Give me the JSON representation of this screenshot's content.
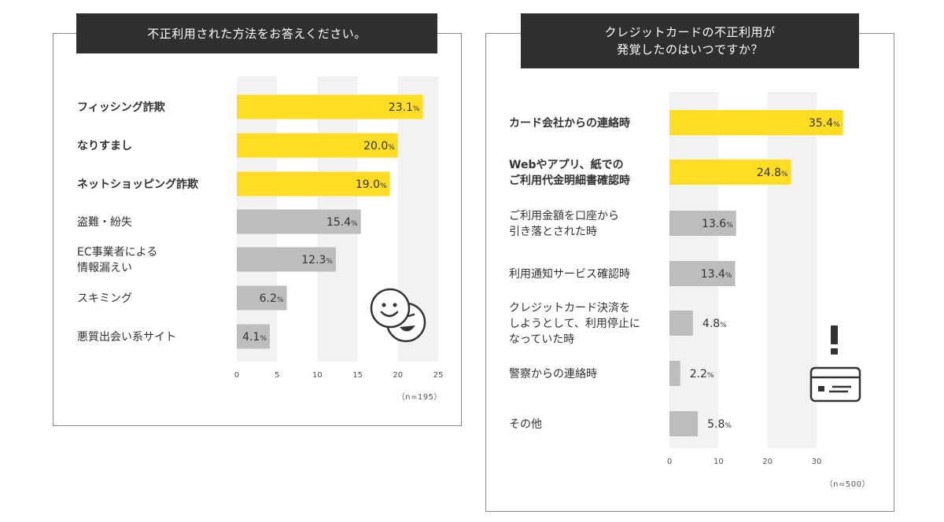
{
  "colors": {
    "highlight": "#ffdd22",
    "gray": "#bdbdbd",
    "band": "#f2f2f2",
    "title_bg": "#2f2f2f",
    "outline": "#333333"
  },
  "icons": {
    "left": "smiley-faces-icon",
    "right": "credit-card-alert-icon"
  },
  "chart_data": [
    {
      "type": "bar",
      "orientation": "horizontal",
      "title": "不正利用された方法をお答えください。",
      "categories": [
        "フィッシング詐欺",
        "なりすまし",
        "ネットショッピング詐欺",
        "盗難・紛失",
        "EC事業者による\n情報漏えい",
        "スキミング",
        "悪質出会い系サイト"
      ],
      "values": [
        23.1,
        20.0,
        19.0,
        15.4,
        12.3,
        6.2,
        4.1
      ],
      "value_labels": [
        "23.1",
        "20.0",
        "19.0",
        "15.4",
        "12.3",
        "6.2",
        "4.1"
      ],
      "unit": "%",
      "highlighted": [
        true,
        true,
        true,
        false,
        false,
        false,
        false
      ],
      "xlim": [
        0,
        25
      ],
      "xticks": [
        0,
        5,
        10,
        15,
        20,
        25
      ],
      "note": "（n=195）"
    },
    {
      "type": "bar",
      "orientation": "horizontal",
      "title": "クレジットカードの不正利用が\n発覚したのはいつですか？",
      "categories": [
        "カード会社からの連絡時",
        "Webやアプリ、紙での\nご利用代金明細書確認時",
        "ご利用金額を口座から\n引き落とされた時",
        "利用通知サービス確認時",
        "クレジットカード決済を\nしようとして、利用停止に\nなっていた時",
        "警察からの連絡時",
        "その他"
      ],
      "values": [
        35.4,
        24.8,
        13.6,
        13.4,
        4.8,
        2.2,
        5.8
      ],
      "value_labels": [
        "35.4",
        "24.8",
        "13.6",
        "13.4",
        "4.8",
        "2.2",
        "5.8"
      ],
      "unit": "%",
      "highlighted": [
        true,
        true,
        false,
        false,
        false,
        false,
        false
      ],
      "xlim": [
        0,
        30
      ],
      "xticks": [
        0,
        10,
        20,
        30
      ],
      "note": "（n=500）"
    }
  ]
}
